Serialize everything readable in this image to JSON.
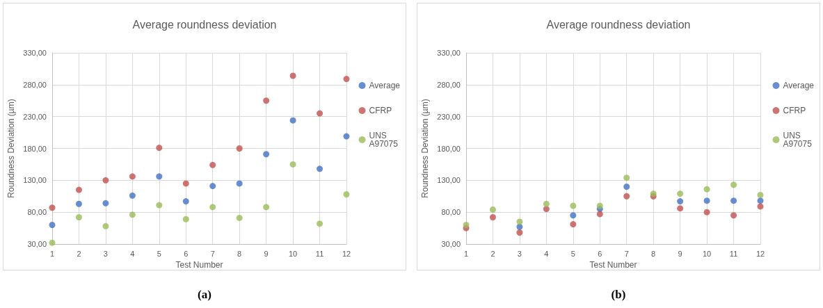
{
  "chart_data": [
    {
      "type": "scatter",
      "title": "Average roundness deviation",
      "xlabel": "Test Number",
      "ylabel": "Roundness Deviation (µm)",
      "annotations": [
        "(a)"
      ],
      "x": [
        1,
        2,
        3,
        4,
        5,
        6,
        7,
        8,
        9,
        10,
        11,
        12
      ],
      "series": [
        {
          "name": "Average",
          "color": "#4472c4",
          "values": [
            60,
            93,
            94,
            106,
            136,
            97,
            121,
            125,
            171,
            224,
            148,
            199
          ]
        },
        {
          "name": "CFRP",
          "color": "#c0504d",
          "values": [
            87,
            115,
            130,
            136,
            181,
            125,
            154,
            180,
            255,
            294,
            235,
            289
          ]
        },
        {
          "name": "UNS A97075",
          "color": "#9bbb59",
          "values": [
            32,
            72,
            58,
            76,
            91,
            69,
            88,
            71,
            88,
            155,
            62,
            108
          ]
        }
      ],
      "xlim": [
        1,
        12
      ],
      "xticks": [
        1,
        2,
        3,
        4,
        5,
        6,
        7,
        8,
        9,
        10,
        11,
        12
      ],
      "ylim": [
        30,
        330
      ],
      "yticks": [
        {
          "value": 30,
          "label": "30,00"
        },
        {
          "value": 80,
          "label": "80,00"
        },
        {
          "value": 130,
          "label": "130,00"
        },
        {
          "value": 180,
          "label": "180,00"
        },
        {
          "value": 230,
          "label": "230,00"
        },
        {
          "value": 280,
          "label": "280,00"
        },
        {
          "value": 330,
          "label": "330,00"
        }
      ],
      "grid": true,
      "legend": "right",
      "marker": "circle"
    },
    {
      "type": "scatter",
      "title": "Average roundness deviation",
      "xlabel": "Test Number",
      "ylabel": "Roundness Deviation (µm)",
      "annotations": [
        "(b)"
      ],
      "x": [
        1,
        2,
        3,
        4,
        5,
        6,
        7,
        8,
        9,
        10,
        11,
        12
      ],
      "series": [
        {
          "name": "Average",
          "color": "#4472c4",
          "values": [
            null,
            null,
            57,
            null,
            75,
            85,
            120,
            null,
            97,
            98,
            98,
            98
          ]
        },
        {
          "name": "CFRP",
          "color": "#c0504d",
          "values": [
            55,
            72,
            48,
            85,
            61,
            77,
            105,
            105,
            86,
            80,
            75,
            89
          ]
        },
        {
          "name": "UNS A97075",
          "color": "#9bbb59",
          "values": [
            60,
            84,
            65,
            93,
            90,
            90,
            134,
            109,
            109,
            116,
            123,
            107
          ]
        }
      ],
      "xlim": [
        1,
        12
      ],
      "xticks": [
        1,
        2,
        3,
        4,
        5,
        6,
        7,
        8,
        9,
        10,
        11,
        12
      ],
      "ylim": [
        30,
        330
      ],
      "yticks": [
        {
          "value": 30,
          "label": "30,00"
        },
        {
          "value": 80,
          "label": "80,00"
        },
        {
          "value": 130,
          "label": "130,00"
        },
        {
          "value": 180,
          "label": "180,00"
        },
        {
          "value": 230,
          "label": "230,00"
        },
        {
          "value": 280,
          "label": "280,00"
        },
        {
          "value": 330,
          "label": "330,00"
        }
      ],
      "grid": true,
      "legend": "right",
      "marker": "circle"
    }
  ]
}
